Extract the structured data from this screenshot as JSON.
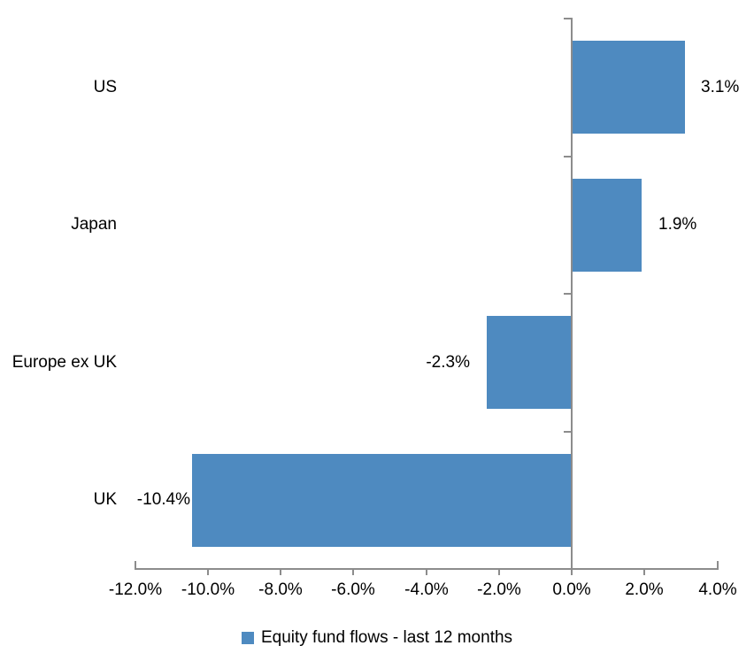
{
  "chart_data": {
    "type": "bar",
    "orientation": "horizontal",
    "categories": [
      "US",
      "Japan",
      "Europe ex UK",
      "UK"
    ],
    "values": [
      3.1,
      1.9,
      -2.3,
      -10.4
    ],
    "value_labels": [
      "3.1%",
      "1.9%",
      "-2.3%",
      "-10.4%"
    ],
    "series": [
      {
        "name": "Equity fund flows - last 12 months",
        "values": [
          3.1,
          1.9,
          -2.3,
          -10.4
        ]
      }
    ],
    "xlim": [
      -12,
      4
    ],
    "x_ticks": [
      -12,
      -10,
      -8,
      -6,
      -4,
      -2,
      0,
      2,
      4
    ],
    "x_tick_labels": [
      "-12.0%",
      "-10.0%",
      "-8.0%",
      "-6.0%",
      "-4.0%",
      "-2.0%",
      "0.0%",
      "2.0%",
      "4.0%"
    ],
    "title": "",
    "xlabel": "",
    "ylabel": "",
    "grid": false,
    "legend_position": "bottom",
    "bar_color": "#4E8AC0",
    "axis_color": "#8C8C8C",
    "text_color": "#000000"
  },
  "legend": {
    "label": "Equity fund flows - last 12 months",
    "swatch_color": "#4E8AC0"
  }
}
